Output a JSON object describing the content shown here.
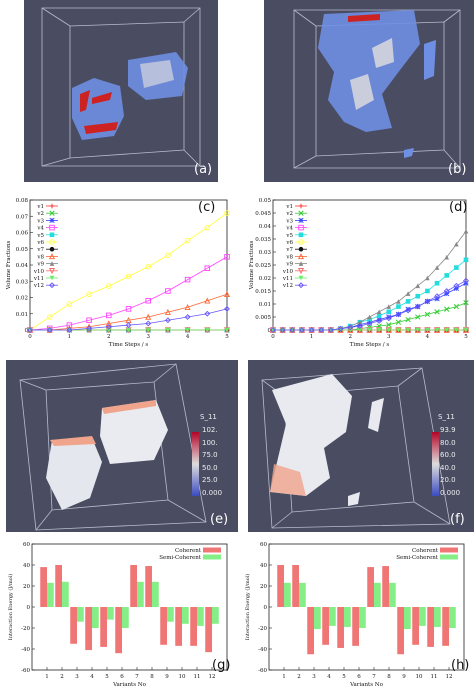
{
  "panels": {
    "a": {
      "label": "(a)"
    },
    "b": {
      "label": "(b)"
    },
    "c": {
      "label": "(c)"
    },
    "d": {
      "label": "(d)"
    },
    "e": {
      "label": "(e)",
      "colorbar": {
        "title": "S_11",
        "ticks": [
          "102.",
          "100.",
          "75.0",
          "50.0",
          "25.0",
          "0.000"
        ]
      }
    },
    "f": {
      "label": "(f)",
      "colorbar": {
        "title": "S_11",
        "ticks": [
          "93.9",
          "80.0",
          "60.0",
          "40.0",
          "20.0",
          "0.000"
        ]
      }
    },
    "g": {
      "label": "(g)"
    },
    "h": {
      "label": "(h)"
    }
  },
  "colors": {
    "v1": "#ff3333",
    "v2": "#33cc33",
    "v3": "#3344ff",
    "v4": "#ff44ff",
    "v5": "#22dddd",
    "v6": "#ffff44",
    "v7": "#111111",
    "v8": "#ff6633",
    "v9": "#888888",
    "v10": "#ff6666",
    "v11": "#66ee66",
    "v12": "#6655ff",
    "coherent": "#f07575",
    "semicoherent": "#86ee86"
  },
  "chart_data": [
    {
      "id": "c",
      "type": "line",
      "xlabel": "Time Steps / s",
      "ylabel": "Volume Fractions",
      "xlim": [
        0,
        5
      ],
      "ylim": [
        0,
        0.08
      ],
      "xticks": [
        "0",
        "1",
        "2",
        "3",
        "4",
        "5"
      ],
      "yticks": [
        "0",
        "0.01",
        "0.02",
        "0.03",
        "0.04",
        "0.05",
        "0.06",
        "0.07",
        "0.08"
      ],
      "x": [
        0,
        0.5,
        1,
        1.5,
        2,
        2.5,
        3,
        3.5,
        4,
        4.5,
        5
      ],
      "series": [
        {
          "name": "v1",
          "values": [
            0,
            0,
            0,
            0,
            0,
            0,
            0,
            0,
            0,
            0,
            0
          ]
        },
        {
          "name": "v2",
          "values": [
            0,
            0,
            0,
            0,
            0,
            0,
            0,
            0,
            0,
            0,
            0
          ]
        },
        {
          "name": "v3",
          "values": [
            0,
            0,
            0,
            0,
            0,
            0,
            0,
            0,
            0,
            0,
            0
          ]
        },
        {
          "name": "v4",
          "values": [
            0,
            0.001,
            0.003,
            0.006,
            0.009,
            0.013,
            0.018,
            0.024,
            0.031,
            0.038,
            0.045
          ]
        },
        {
          "name": "v5",
          "values": [
            0,
            0,
            0,
            0,
            0,
            0,
            0,
            0,
            0,
            0,
            0
          ]
        },
        {
          "name": "v6",
          "values": [
            0,
            0.008,
            0.016,
            0.022,
            0.027,
            0.033,
            0.039,
            0.046,
            0.055,
            0.063,
            0.072
          ]
        },
        {
          "name": "v7",
          "values": [
            0,
            0,
            0,
            0,
            0,
            0,
            0,
            0,
            0,
            0,
            0
          ]
        },
        {
          "name": "v8",
          "values": [
            0,
            0,
            0.001,
            0.002,
            0.004,
            0.006,
            0.008,
            0.011,
            0.014,
            0.018,
            0.022
          ]
        },
        {
          "name": "v9",
          "values": [
            0,
            0,
            0,
            0,
            0,
            0,
            0,
            0,
            0,
            0,
            0
          ]
        },
        {
          "name": "v10",
          "values": [
            0,
            0,
            0,
            0,
            0,
            0,
            0,
            0,
            0,
            0,
            0
          ]
        },
        {
          "name": "v11",
          "values": [
            0,
            0,
            0,
            0,
            0,
            0,
            0,
            0,
            0,
            0,
            0
          ]
        },
        {
          "name": "v12",
          "values": [
            0,
            0,
            0,
            0.001,
            0.002,
            0.003,
            0.004,
            0.006,
            0.008,
            0.01,
            0.013
          ]
        }
      ]
    },
    {
      "id": "d",
      "type": "line",
      "xlabel": "Time Steps / s",
      "ylabel": "Volume Fractions",
      "xlim": [
        0,
        5
      ],
      "ylim": [
        0,
        0.05
      ],
      "xticks": [
        "0",
        "1",
        "2",
        "3",
        "4",
        "5"
      ],
      "yticks": [
        "0",
        "0.005",
        "0.01",
        "0.015",
        "0.02",
        "0.025",
        "0.03",
        "0.035",
        "0.04",
        "0.045",
        "0.05"
      ],
      "x": [
        0,
        0.25,
        0.5,
        0.75,
        1,
        1.25,
        1.5,
        1.75,
        2,
        2.25,
        2.5,
        2.75,
        3,
        3.25,
        3.5,
        3.75,
        4,
        4.25,
        4.5,
        4.75,
        5
      ],
      "series": [
        {
          "name": "v1",
          "values": [
            0,
            0,
            0,
            0,
            0,
            0,
            0,
            0,
            0,
            0,
            0,
            0,
            0,
            0,
            0,
            0,
            0,
            0,
            0,
            0,
            0
          ]
        },
        {
          "name": "v2",
          "values": [
            0,
            0,
            0,
            0,
            0,
            0,
            0,
            0,
            0,
            0.0005,
            0.001,
            0.0015,
            0.002,
            0.003,
            0.004,
            0.005,
            0.006,
            0.007,
            0.008,
            0.009,
            0.0105
          ]
        },
        {
          "name": "v3",
          "values": [
            0,
            0,
            0,
            0,
            0,
            0,
            0,
            0.0005,
            0.001,
            0.002,
            0.003,
            0.004,
            0.005,
            0.006,
            0.008,
            0.009,
            0.011,
            0.012,
            0.014,
            0.016,
            0.018
          ]
        },
        {
          "name": "v4",
          "values": [
            0,
            0,
            0,
            0,
            0,
            0,
            0,
            0,
            0,
            0,
            0,
            0,
            0,
            0,
            0,
            0,
            0,
            0,
            0,
            0,
            0
          ]
        },
        {
          "name": "v5",
          "values": [
            0,
            0,
            0,
            0,
            0,
            0,
            0,
            0.0005,
            0.0015,
            0.003,
            0.004,
            0.0055,
            0.007,
            0.009,
            0.011,
            0.013,
            0.015,
            0.018,
            0.021,
            0.024,
            0.027
          ]
        },
        {
          "name": "v6",
          "values": [
            0,
            0,
            0,
            0,
            0,
            0,
            0,
            0,
            0,
            0,
            0,
            0,
            0,
            0,
            0,
            0,
            0,
            0,
            0,
            0,
            0
          ]
        },
        {
          "name": "v7",
          "values": [
            0,
            0,
            0,
            0,
            0,
            0,
            0,
            0,
            0,
            0,
            0,
            0,
            0,
            0,
            0,
            0,
            0,
            0,
            0,
            0,
            0
          ]
        },
        {
          "name": "v8",
          "values": [
            0,
            0,
            0,
            0,
            0,
            0,
            0,
            0,
            0,
            0,
            0,
            0,
            0,
            0,
            0,
            0,
            0,
            0,
            0,
            0,
            0
          ]
        },
        {
          "name": "v9",
          "values": [
            0,
            0,
            0,
            0,
            0,
            0,
            0,
            0.0005,
            0.0015,
            0.003,
            0.005,
            0.007,
            0.009,
            0.011,
            0.014,
            0.017,
            0.02,
            0.024,
            0.028,
            0.033,
            0.038
          ]
        },
        {
          "name": "v10",
          "values": [
            0,
            0,
            0,
            0,
            0,
            0,
            0,
            0,
            0,
            0,
            0,
            0,
            0,
            0,
            0,
            0,
            0,
            0,
            0,
            0,
            0
          ]
        },
        {
          "name": "v11",
          "values": [
            0,
            0,
            0,
            0,
            0,
            0,
            0,
            0,
            0,
            0,
            0,
            0,
            0,
            0,
            0,
            0,
            0,
            0,
            0,
            0,
            0
          ]
        },
        {
          "name": "v12",
          "values": [
            0,
            0,
            0,
            0,
            0,
            0,
            0,
            0.0005,
            0.001,
            0.0015,
            0.0025,
            0.0035,
            0.0045,
            0.006,
            0.0075,
            0.009,
            0.011,
            0.013,
            0.015,
            0.017,
            0.019
          ]
        }
      ]
    },
    {
      "id": "g",
      "type": "bar",
      "xlabel": "Variants No",
      "ylabel": "Interaction Energy (J/mol)",
      "ylim": [
        -60,
        60
      ],
      "yticks": [
        "60",
        "40",
        "20",
        "0",
        "-20",
        "-40",
        "-60"
      ],
      "categories": [
        "1",
        "2",
        "3",
        "4",
        "5",
        "6",
        "7",
        "8",
        "9",
        "10",
        "11",
        "12"
      ],
      "series": [
        {
          "name": "Coherent",
          "values": [
            38,
            40,
            -35,
            -41,
            -38,
            -44,
            40,
            39,
            -36,
            -37,
            -37,
            -43
          ]
        },
        {
          "name": "Semi-Coherent",
          "values": [
            23,
            24,
            -14,
            -20,
            -12,
            -20,
            24,
            24,
            -14,
            -16,
            -18,
            -16
          ]
        }
      ]
    },
    {
      "id": "h",
      "type": "bar",
      "xlabel": "Variants No",
      "ylabel": "Interaction Energy (J/mol)",
      "ylim": [
        -60,
        60
      ],
      "yticks": [
        "60",
        "40",
        "20",
        "0",
        "-20",
        "-40",
        "-60"
      ],
      "categories": [
        "1",
        "2",
        "3",
        "4",
        "5",
        "6",
        "7",
        "8",
        "9",
        "10",
        "11",
        "12"
      ],
      "series": [
        {
          "name": "Coherent",
          "values": [
            40,
            40,
            -45,
            -36,
            -39,
            -37,
            38,
            39,
            -45,
            -36,
            -38,
            -37
          ]
        },
        {
          "name": "Semi-Coherent",
          "values": [
            23,
            23,
            -21,
            -18,
            -19,
            -20,
            23,
            23,
            -21,
            -18,
            -19,
            -20
          ]
        }
      ]
    }
  ]
}
